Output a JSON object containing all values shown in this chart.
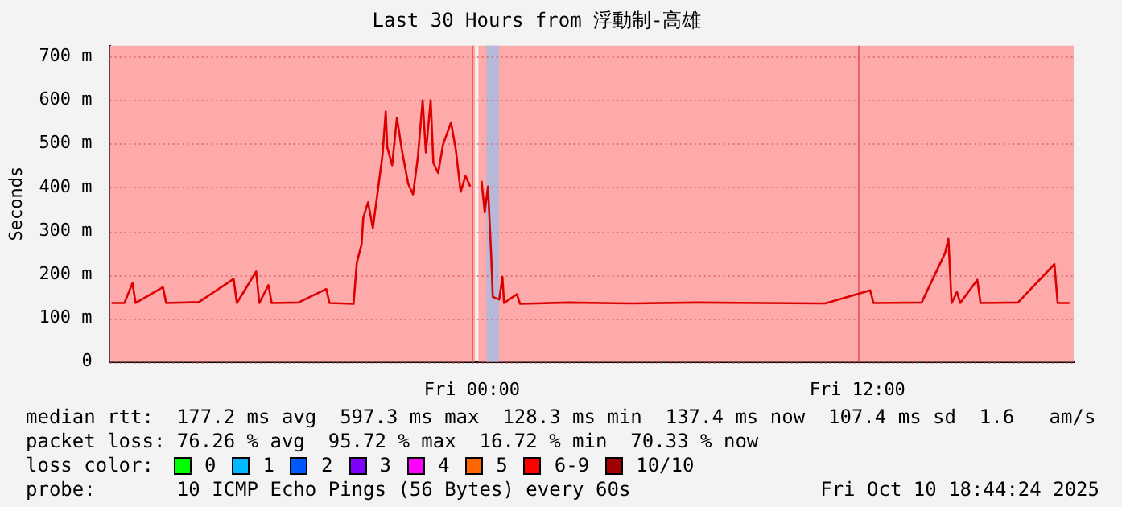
{
  "chart_data": {
    "type": "line",
    "title": "Last 30 Hours from 浮動制-高雄",
    "ylabel": "Seconds",
    "x": [
      "2025-10-09T12:47",
      "2025-10-09T13:11",
      "2025-10-09T13:26",
      "2025-10-09T13:32",
      "2025-10-09T14:23",
      "2025-10-09T14:29",
      "2025-10-09T15:30",
      "2025-10-09T16:35",
      "2025-10-09T16:41",
      "2025-10-09T17:17",
      "2025-10-09T17:23",
      "2025-10-09T17:40",
      "2025-10-09T17:46",
      "2025-10-09T18:36",
      "2025-10-09T19:28",
      "2025-10-09T19:34",
      "2025-10-09T20:19",
      "2025-10-09T20:25",
      "2025-10-09T20:34",
      "2025-10-09T20:37",
      "2025-10-09T20:46",
      "2025-10-09T20:55",
      "2025-10-09T21:04",
      "2025-10-09T21:13",
      "2025-10-09T21:19",
      "2025-10-09T21:22",
      "2025-10-09T21:31",
      "2025-10-09T21:40",
      "2025-10-09T21:49",
      "2025-10-09T22:01",
      "2025-10-09T22:10",
      "2025-10-09T22:19",
      "2025-10-09T22:28",
      "2025-10-09T22:34",
      "2025-10-09T22:43",
      "2025-10-09T22:48",
      "2025-10-09T22:57",
      "2025-10-09T23:06",
      "2025-10-09T23:21",
      "2025-10-09T23:30",
      "2025-10-09T23:39",
      "2025-10-09T23:48",
      "2025-10-09T23:57",
      "2025-10-10T00:09",
      "2025-10-10T00:18",
      "2025-10-10T00:24",
      "2025-10-10T00:30",
      "2025-10-10T00:36",
      "2025-10-10T00:39",
      "2025-10-10T00:51",
      "2025-10-10T00:57",
      "2025-10-10T01:00",
      "2025-10-10T01:24",
      "2025-10-10T01:30",
      "2025-10-10T03:00",
      "2025-10-10T05:00",
      "2025-10-10T07:00",
      "2025-10-10T09:00",
      "2025-10-10T11:00",
      "2025-10-10T12:24",
      "2025-10-10T12:30",
      "2025-10-10T14:00",
      "2025-10-10T14:44",
      "2025-10-10T14:50",
      "2025-10-10T14:56",
      "2025-10-10T15:06",
      "2025-10-10T15:12",
      "2025-10-10T15:44",
      "2025-10-10T15:50",
      "2025-10-10T17:00",
      "2025-10-10T18:08",
      "2025-10-10T18:14",
      "2025-10-10T18:36"
    ],
    "series": [
      {
        "color": "#dd0000",
        "values": [
          135,
          135,
          180,
          135,
          171,
          135,
          137,
          190,
          135,
          207,
          135,
          176,
          135,
          136,
          167,
          135,
          133,
          227,
          270,
          330,
          366,
          307,
          390,
          474,
          574,
          492,
          451,
          560,
          487,
          408,
          384,
          469,
          600,
          480,
          600,
          456,
          433,
          498,
          549,
          486,
          390,
          426,
          402,
          null,
          415,
          343,
          402,
          245,
          149,
          143,
          195,
          135,
          155,
          133,
          136,
          134,
          136,
          135,
          134,
          164,
          135,
          136,
          250,
          282,
          135,
          160,
          135,
          188,
          135,
          136,
          224,
          135,
          135
        ]
      }
    ],
    "xlim": [
      "2025-10-09T12:44",
      "2025-10-10T18:44"
    ],
    "xticks": [
      {
        "value": "2025-10-10T00:00",
        "label": "Fri 00:00"
      },
      {
        "value": "2025-10-10T12:00",
        "label": "Fri 12:00"
      }
    ],
    "ylim": [
      0,
      725
    ],
    "yticks": [
      0,
      {
        "value": 100,
        "label": "100 m"
      },
      {
        "value": 200,
        "label": "200 m"
      },
      {
        "value": 300,
        "label": "300 m"
      },
      {
        "value": 400,
        "label": "400 m"
      },
      {
        "value": 500,
        "label": "500 m"
      },
      {
        "value": 600,
        "label": "600 m"
      },
      {
        "value": 700,
        "label": "700 m"
      }
    ],
    "bands": [
      {
        "axis": "x",
        "from": "2025-10-09T12:44",
        "to": "2025-10-10T00:06",
        "color": "#ffaaaa"
      },
      {
        "axis": "x",
        "from": "2025-10-10T00:12",
        "to": "2025-10-10T18:44",
        "color": "#ffaaaa"
      },
      {
        "axis": "x",
        "from": "2025-10-10T00:27",
        "to": "2025-10-10T00:51",
        "color": "#b8b8d8"
      }
    ],
    "grid": true,
    "legend": false,
    "marker": "none",
    "line_style": "solid",
    "annotations": [
      "median rtt:  177.2 ms avg  597.3 ms max  128.3 ms min  137.4 ms now  107.4 ms sd  1.6   am/s",
      "packet loss: 76.26 % avg  95.72 % max  16.72 % min  70.33 % now",
      "loss color:",
      "0",
      "1",
      "2",
      "3",
      "4",
      "5",
      "6-9",
      "10/10",
      "probe:       10 ICMP Echo Pings (56 Bytes) every 60s",
      "Fri Oct 10 18:44:24 2025"
    ]
  }
}
